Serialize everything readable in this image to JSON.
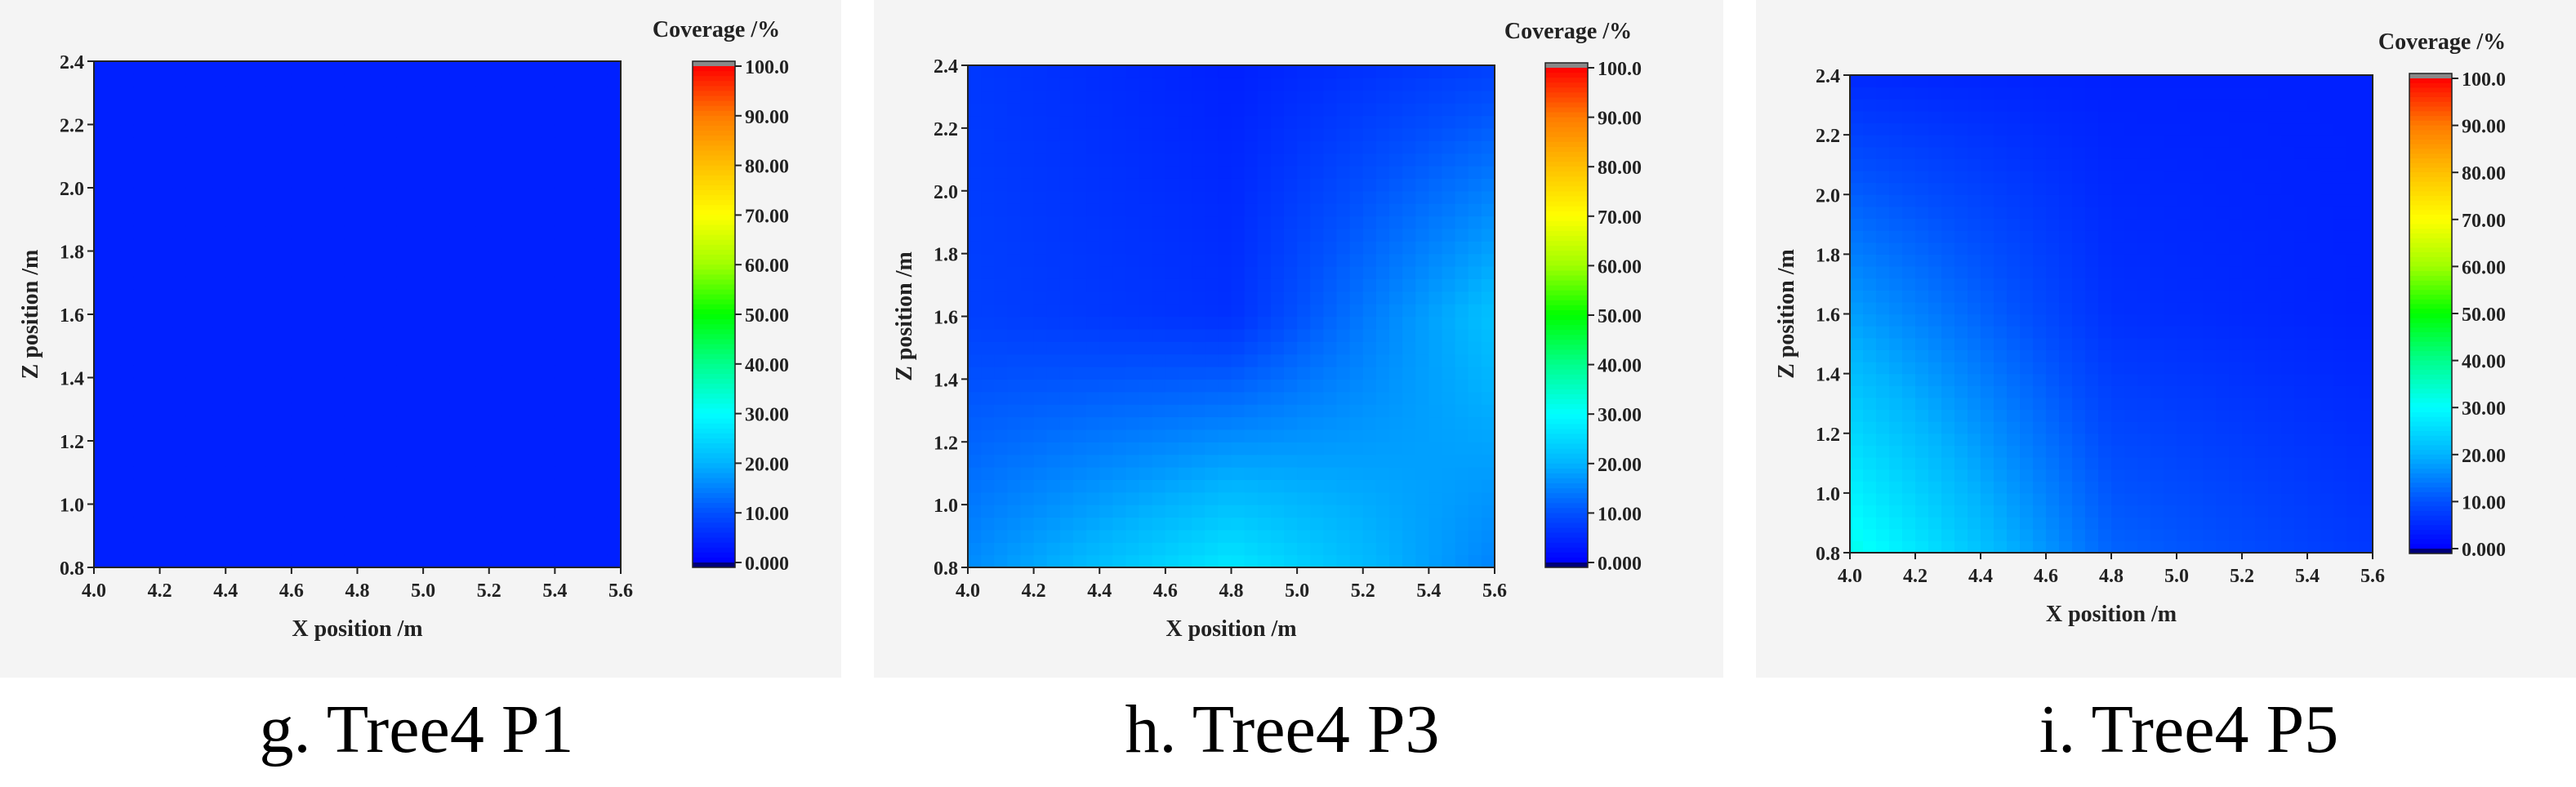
{
  "colorbar": {
    "title": "Coverage /%",
    "ticks": [
      "100.0",
      "90.00",
      "80.00",
      "70.00",
      "60.00",
      "50.00",
      "40.00",
      "30.00",
      "20.00",
      "10.00",
      "0.000"
    ],
    "range": [
      0,
      100
    ],
    "colors": [
      "#00007a",
      "#0000ff",
      "#0050ff",
      "#00b4ff",
      "#00ffff",
      "#00ff8c",
      "#00ff00",
      "#a0ff00",
      "#ffff00",
      "#ffc000",
      "#ff7a00",
      "#ff0000",
      "#888888"
    ]
  },
  "chart_data": [
    {
      "id": "g",
      "type": "heatmap",
      "caption": "g. Tree4 P1",
      "xlabel": "X position /m",
      "ylabel": "Z position /m",
      "xlim": [
        4.0,
        5.6
      ],
      "ylim": [
        0.8,
        2.4
      ],
      "xticks": [
        "4.0",
        "4.2",
        "4.4",
        "4.6",
        "4.8",
        "5.0",
        "5.2",
        "5.4",
        "5.6"
      ],
      "yticks": [
        "0.8",
        "1.0",
        "1.2",
        "1.4",
        "1.6",
        "1.8",
        "2.0",
        "2.2",
        "2.4"
      ],
      "x": [
        4.0,
        4.8,
        5.6
      ],
      "z": [
        0.8,
        1.6,
        2.4
      ],
      "values": [
        [
          4,
          4,
          4
        ],
        [
          4,
          4,
          4
        ],
        [
          4,
          4,
          4
        ]
      ]
    },
    {
      "id": "h",
      "type": "heatmap",
      "caption": "h. Tree4 P3",
      "xlabel": "X position /m",
      "ylabel": "Z position /m",
      "xlim": [
        4.0,
        5.6
      ],
      "ylim": [
        0.8,
        2.4
      ],
      "xticks": [
        "4.0",
        "4.2",
        "4.4",
        "4.6",
        "4.8",
        "5.0",
        "5.2",
        "5.4",
        "5.6"
      ],
      "yticks": [
        "0.8",
        "1.0",
        "1.2",
        "1.4",
        "1.6",
        "1.8",
        "2.0",
        "2.2",
        "2.4"
      ],
      "x": [
        4.0,
        4.8,
        5.6
      ],
      "z": [
        0.8,
        1.6,
        2.4
      ],
      "values": [
        [
          16,
          27,
          15
        ],
        [
          8,
          6,
          22
        ],
        [
          7,
          4,
          8
        ]
      ]
    },
    {
      "id": "i",
      "type": "heatmap",
      "caption": "i. Tree4 P5",
      "xlabel": "X position /m",
      "ylabel": "Z position /m",
      "xlim": [
        4.0,
        5.6
      ],
      "ylim": [
        0.8,
        2.4
      ],
      "xticks": [
        "4.0",
        "4.2",
        "4.4",
        "4.6",
        "4.8",
        "5.0",
        "5.2",
        "5.4",
        "5.6"
      ],
      "yticks": [
        "0.8",
        "1.0",
        "1.2",
        "1.4",
        "1.6",
        "1.8",
        "2.0",
        "2.2",
        "2.4"
      ],
      "x": [
        4.0,
        4.8,
        5.6
      ],
      "z": [
        0.8,
        1.6,
        2.4
      ],
      "values": [
        [
          32,
          12,
          7
        ],
        [
          18,
          6,
          4
        ],
        [
          5,
          4,
          4
        ]
      ]
    }
  ]
}
